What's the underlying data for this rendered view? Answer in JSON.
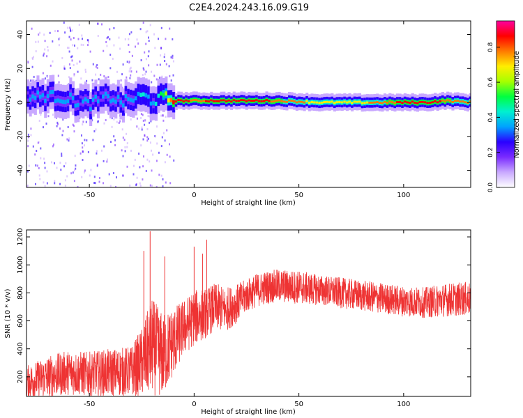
{
  "title": "C2E4.2024.243.16.09.G19",
  "chart_data": [
    {
      "type": "heatmap",
      "xlabel": "Height of straight line (km)",
      "ylabel": "Frequency (Hz)",
      "xlim": [
        -80,
        132
      ],
      "ylim": [
        -50,
        48
      ],
      "x_ticks": [
        -50,
        0,
        50,
        100
      ],
      "y_ticks": [
        -40,
        -20,
        0,
        20,
        40
      ],
      "colorbar": {
        "label": "Normalized spectral amplitude",
        "range": [
          0,
          0.95
        ],
        "ticks": [
          0,
          0.2,
          0.4,
          0.6,
          0.8
        ],
        "colormap": [
          "#ffffff",
          "#c9a9ff",
          "#7a2bff",
          "#2a00ff",
          "#00a2ff",
          "#00f0d0",
          "#00ff40",
          "#a6ff00",
          "#ffee00",
          "#ff7a00",
          "#ff0000",
          "#ff00a0"
        ]
      },
      "ridge": {
        "x": [
          -80,
          -70,
          -60,
          -55,
          -50,
          -45,
          -40,
          -35,
          -30,
          -25,
          -20,
          -15,
          -10,
          0,
          20,
          40,
          60,
          80,
          100,
          110,
          120,
          132
        ],
        "freq": [
          3,
          4,
          2,
          0,
          -1,
          2,
          3,
          0,
          2,
          4,
          1,
          3,
          1,
          1,
          1,
          1,
          0,
          0,
          0,
          0,
          1,
          0
        ],
        "amplitude": [
          0.3,
          0.35,
          0.32,
          0.3,
          0.35,
          0.3,
          0.35,
          0.32,
          0.35,
          0.4,
          0.35,
          0.55,
          0.9,
          0.8,
          0.9,
          0.8,
          0.7,
          0.72,
          0.85,
          0.9,
          0.8,
          0.75
        ]
      }
    },
    {
      "type": "line",
      "xlabel": "Height of straight line (km)",
      "ylabel": "SNR (10 * v/v)",
      "xlim": [
        -80,
        132
      ],
      "ylim": [
        60,
        1250
      ],
      "x_ticks": [
        -50,
        0,
        50,
        100
      ],
      "y_ticks": [
        200,
        400,
        600,
        800,
        1000,
        1200
      ],
      "color": "#ee3333",
      "series": [
        {
          "x": [
            -80,
            -70,
            -60,
            -50,
            -40,
            -30,
            -25,
            -20,
            -15,
            -10,
            -5,
            0,
            5,
            10,
            15,
            20,
            25,
            30,
            35,
            40,
            50,
            60,
            70,
            80,
            90,
            100,
            110,
            120,
            132
          ],
          "mean": [
            160,
            200,
            230,
            220,
            230,
            240,
            300,
            420,
            350,
            450,
            550,
            620,
            650,
            700,
            680,
            720,
            780,
            820,
            840,
            850,
            840,
            820,
            800,
            780,
            760,
            740,
            730,
            750,
            760
          ],
          "spread": [
            120,
            150,
            160,
            160,
            170,
            180,
            250,
            350,
            300,
            250,
            200,
            200,
            180,
            170,
            160,
            140,
            120,
            120,
            120,
            120,
            120,
            110,
            110,
            110,
            110,
            110,
            110,
            120,
            120
          ]
        }
      ],
      "spikes": [
        {
          "x": -21,
          "y": 1240
        },
        {
          "x": -24,
          "y": 1100
        },
        {
          "x": -14,
          "y": 1060
        },
        {
          "x": 0,
          "y": 1130
        },
        {
          "x": 6,
          "y": 1180
        },
        {
          "x": 4,
          "y": 1080
        }
      ]
    }
  ]
}
